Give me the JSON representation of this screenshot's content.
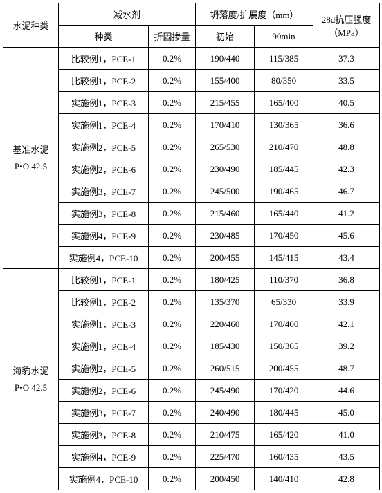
{
  "headers": {
    "cement_type": "水泥种类",
    "admixture_group": "减水剂",
    "admixture_type": "种类",
    "admixture_dosage": "折固掺量",
    "slump_group": "坍落度/扩展度（mm）",
    "slump_initial": "初始",
    "slump_90min": "90min",
    "strength": "28d抗压强度（MPa）"
  },
  "cement_groups": [
    {
      "label_line1": "基准水泥",
      "label_line2": "P•O 42.5",
      "rows": [
        {
          "type": "比较例1，PCE-1",
          "dosage": "0.2%",
          "initial": "190/440",
          "min90": "115/385",
          "strength": "37.3"
        },
        {
          "type": "比较例1，PCE-2",
          "dosage": "0.2%",
          "initial": "155/400",
          "min90": "80/350",
          "strength": "33.5"
        },
        {
          "type": "实施例1，PCE-3",
          "dosage": "0.2%",
          "initial": "215/455",
          "min90": "165/400",
          "strength": "40.5"
        },
        {
          "type": "实施例1，PCE-4",
          "dosage": "0.2%",
          "initial": "170/410",
          "min90": "130/365",
          "strength": "36.6"
        },
        {
          "type": "实施例2，PCE-5",
          "dosage": "0.2%",
          "initial": "265/530",
          "min90": "210/470",
          "strength": "48.8"
        },
        {
          "type": "实施例2，PCE-6",
          "dosage": "0.2%",
          "initial": "230/490",
          "min90": "185/445",
          "strength": "42.3"
        },
        {
          "type": "实施例3，PCE-7",
          "dosage": "0.2%",
          "initial": "245/500",
          "min90": "190/465",
          "strength": "46.7"
        },
        {
          "type": "实施例3，PCE-8",
          "dosage": "0.2%",
          "initial": "215/460",
          "min90": "165/440",
          "strength": "41.2"
        },
        {
          "type": "实施例4，PCE-9",
          "dosage": "0.2%",
          "initial": "230/485",
          "min90": "170/450",
          "strength": "45.6"
        },
        {
          "type": "实施例4，PCE-10",
          "dosage": "0.2%",
          "initial": "200/455",
          "min90": "145/415",
          "strength": "43.4"
        }
      ]
    },
    {
      "label_line1": "海豹水泥",
      "label_line2": "P•O 42.5",
      "rows": [
        {
          "type": "比较例1，PCE-1",
          "dosage": "0.2%",
          "initial": "180/425",
          "min90": "110/370",
          "strength": "36.8"
        },
        {
          "type": "比较例1，PCE-2",
          "dosage": "0.2%",
          "initial": "135/370",
          "min90": "65/330",
          "strength": "33.9"
        },
        {
          "type": "实施例1，PCE-3",
          "dosage": "0.2%",
          "initial": "220/460",
          "min90": "170/400",
          "strength": "42.1"
        },
        {
          "type": "实施例1，PCE-4",
          "dosage": "0.2%",
          "initial": "185/430",
          "min90": "150/365",
          "strength": "39.2"
        },
        {
          "type": "实施例2，PCE-5",
          "dosage": "0.2%",
          "initial": "260/515",
          "min90": "200/455",
          "strength": "48.7"
        },
        {
          "type": "实施例2，PCE-6",
          "dosage": "0.2%",
          "initial": "245/490",
          "min90": "170/420",
          "strength": "44.6"
        },
        {
          "type": "实施例3，PCE-7",
          "dosage": "0.2%",
          "initial": "240/490",
          "min90": "180/445",
          "strength": "45.0"
        },
        {
          "type": "实施例3，PCE-8",
          "dosage": "0.2%",
          "initial": "210/475",
          "min90": "165/420",
          "strength": "41.0"
        },
        {
          "type": "实施例4，PCE-9",
          "dosage": "0.2%",
          "initial": "225/470",
          "min90": "160/435",
          "strength": "43.5"
        },
        {
          "type": "实施例4，PCE-10",
          "dosage": "0.2%",
          "initial": "200/450",
          "min90": "140/410",
          "strength": "42.8"
        }
      ]
    }
  ]
}
